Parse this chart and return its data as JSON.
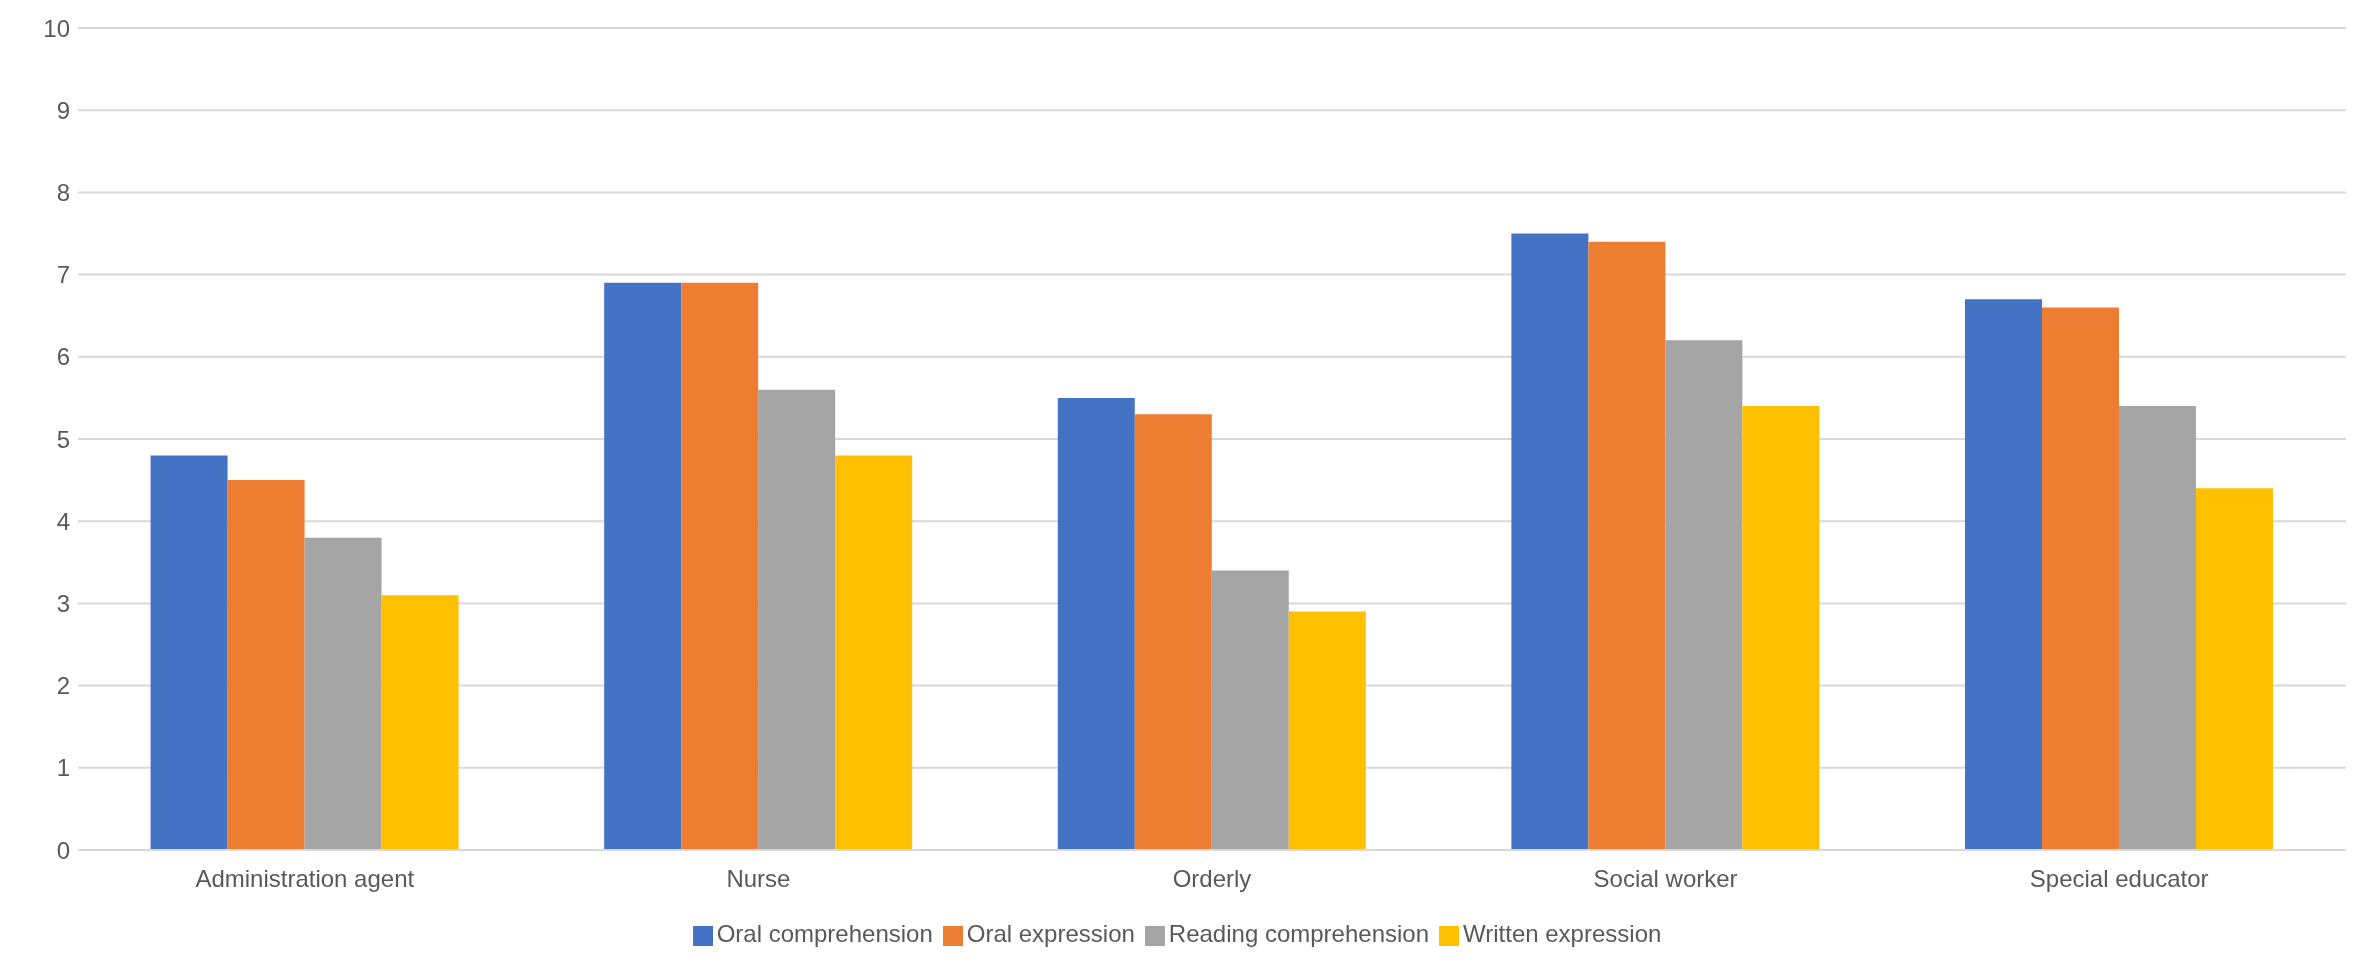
{
  "chart_data": {
    "type": "bar",
    "categories": [
      "Administration agent",
      "Nurse",
      "Orderly",
      "Social worker",
      "Special educator"
    ],
    "series": [
      {
        "name": "Oral comprehension",
        "color": "#4472c4",
        "values": [
          4.8,
          6.9,
          5.5,
          7.5,
          6.7
        ]
      },
      {
        "name": "Oral expression",
        "color": "#ed7d31",
        "values": [
          4.5,
          6.9,
          5.3,
          7.4,
          6.6
        ]
      },
      {
        "name": "Reading comprehension",
        "color": "#a5a5a5",
        "values": [
          3.8,
          5.6,
          3.4,
          6.2,
          5.4
        ]
      },
      {
        "name": "Written expression",
        "color": "#ffc000",
        "values": [
          3.1,
          4.8,
          2.9,
          5.4,
          4.4
        ]
      }
    ],
    "ylim": [
      0,
      10
    ],
    "yticks": [
      0,
      1,
      2,
      3,
      4,
      5,
      6,
      7,
      8,
      9,
      10
    ],
    "grid": "y",
    "legend": "bottom"
  }
}
